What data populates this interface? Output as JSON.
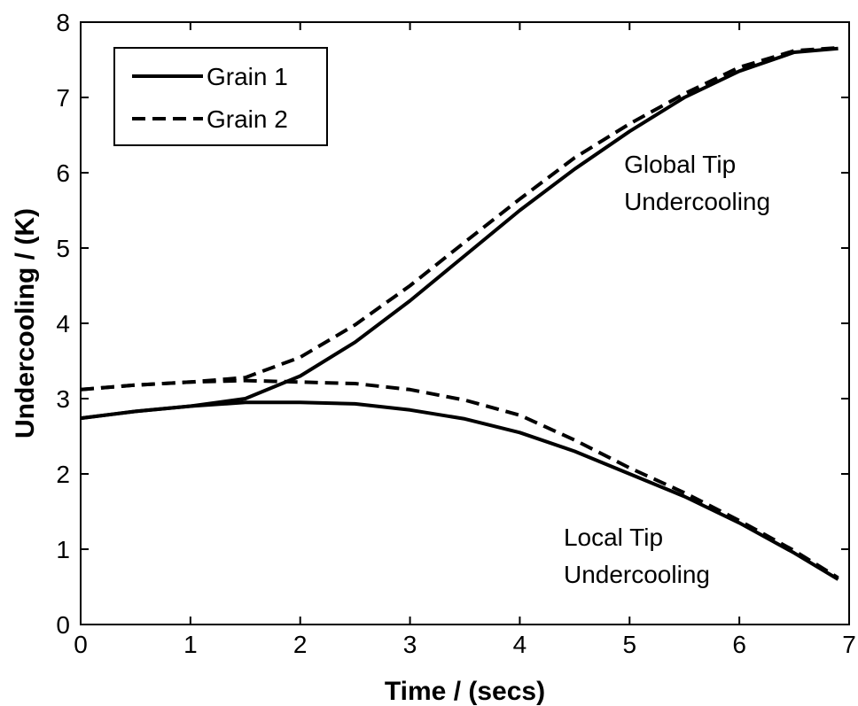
{
  "chart_data": {
    "type": "line",
    "xlabel": "Time / (secs)",
    "ylabel": "Undercooling / (K)",
    "xlim": [
      0,
      7
    ],
    "ylim": [
      0,
      8
    ],
    "xticks": [
      0,
      1,
      2,
      3,
      4,
      5,
      6,
      7
    ],
    "yticks": [
      0,
      1,
      2,
      3,
      4,
      5,
      6,
      7,
      8
    ],
    "grid": false,
    "legend_position": "top-left",
    "legend": [
      {
        "label": "Grain 1",
        "style": "solid"
      },
      {
        "label": "Grain 2",
        "style": "dashed"
      }
    ],
    "annotations": [
      {
        "lines": [
          "Global Tip",
          "Undercooling"
        ],
        "x": 4.95,
        "y": 6.0
      },
      {
        "lines": [
          "Local Tip",
          "Undercooling"
        ],
        "x": 4.4,
        "y": 1.05
      }
    ],
    "series": [
      {
        "name": "Grain 1",
        "group": "Global Tip Undercooling",
        "style": "solid",
        "x": [
          0,
          0.5,
          1.0,
          1.5,
          2.0,
          2.5,
          3.0,
          3.5,
          4.0,
          4.5,
          5.0,
          5.5,
          6.0,
          6.5,
          6.9
        ],
        "y": [
          2.74,
          2.83,
          2.9,
          3.0,
          3.3,
          3.75,
          4.3,
          4.9,
          5.5,
          6.05,
          6.55,
          7.0,
          7.35,
          7.6,
          7.65
        ]
      },
      {
        "name": "Grain 2",
        "group": "Global Tip Undercooling",
        "style": "dashed",
        "x": [
          0,
          0.5,
          1.0,
          1.5,
          2.0,
          2.5,
          3.0,
          3.5,
          4.0,
          4.5,
          5.0,
          5.5,
          6.0,
          6.5,
          6.9
        ],
        "y": [
          3.12,
          3.18,
          3.22,
          3.28,
          3.55,
          3.98,
          4.5,
          5.08,
          5.65,
          6.2,
          6.65,
          7.05,
          7.4,
          7.62,
          7.66
        ]
      },
      {
        "name": "Grain 1",
        "group": "Local Tip Undercooling",
        "style": "solid",
        "x": [
          0,
          0.5,
          1.0,
          1.5,
          2.0,
          2.5,
          3.0,
          3.5,
          4.0,
          4.5,
          5.0,
          5.5,
          6.0,
          6.5,
          6.9
        ],
        "y": [
          2.74,
          2.83,
          2.9,
          2.95,
          2.95,
          2.93,
          2.85,
          2.73,
          2.55,
          2.3,
          2.0,
          1.7,
          1.35,
          0.95,
          0.6
        ]
      },
      {
        "name": "Grain 2",
        "group": "Local Tip Undercooling",
        "style": "dashed",
        "x": [
          0,
          0.5,
          1.0,
          1.5,
          2.0,
          2.5,
          3.0,
          3.5,
          4.0,
          4.5,
          5.0,
          5.5,
          6.0,
          6.5,
          6.9
        ],
        "y": [
          3.12,
          3.18,
          3.22,
          3.24,
          3.22,
          3.2,
          3.12,
          2.98,
          2.78,
          2.45,
          2.08,
          1.75,
          1.38,
          0.98,
          0.62
        ]
      }
    ]
  }
}
